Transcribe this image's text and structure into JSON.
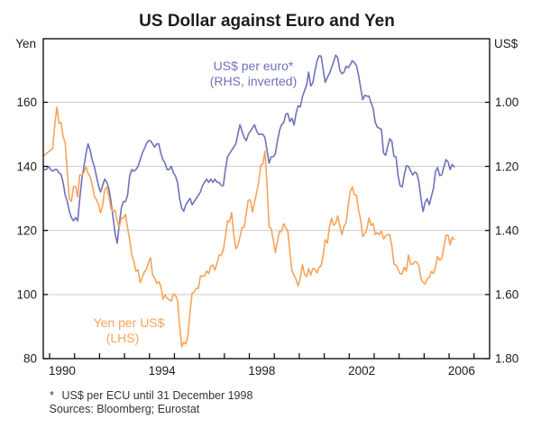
{
  "title": "US Dollar against Euro and Yen",
  "left_unit": "Yen",
  "right_unit": "US$",
  "annotations": {
    "euro_label_line1": "US$ per euro*",
    "euro_label_line2": "(RHS, inverted)",
    "yen_label_line1": "Yen per US$",
    "yen_label_line2": "(LHS)"
  },
  "footnote_marker": "*",
  "footnote_text": "US$ per ECU until 31 December 1998",
  "sources": "Sources: Bloomberg; Eurostat",
  "colors": {
    "yen": "#F8A35A",
    "euro": "#6F72B9",
    "grid": "#C9C9C9",
    "frame": "#000000",
    "text": "#1D1D1D",
    "footnote": "#333333"
  },
  "chart_data": {
    "type": "line",
    "title": "US Dollar against Euro and Yen",
    "x_start": 1989.7917,
    "x_step_months": 1,
    "x_axis": {
      "tick_years_start": 1990,
      "tick_years_end": 2007,
      "labeled_years": [
        1990,
        1994,
        1998,
        2002,
        2006
      ],
      "domain": [
        1989.75,
        2007.65
      ]
    },
    "left_axis": {
      "label": "Yen",
      "ticks": [
        160,
        140,
        120,
        100,
        80
      ],
      "range": [
        80,
        160
      ]
    },
    "right_axis": {
      "label": "US$",
      "tick_labels": [
        "1.00",
        "1.20",
        "1.40",
        "1.60",
        "1.80"
      ],
      "ticks": [
        1.0,
        1.2,
        1.4,
        1.6,
        1.8
      ],
      "inverted": true,
      "range": [
        1.0,
        1.8
      ]
    },
    "grid": "horizontal-only",
    "legend_position": "inline-annotations",
    "series": [
      {
        "name": "US$ per euro (RHS, inverted)",
        "axis": "right",
        "color_key": "euro",
        "values": [
          1.21,
          1.21,
          1.2,
          1.21,
          1.215,
          1.21,
          1.21,
          1.22,
          1.225,
          1.25,
          1.29,
          1.31,
          1.34,
          1.36,
          1.37,
          1.36,
          1.37,
          1.3,
          1.24,
          1.2,
          1.16,
          1.13,
          1.15,
          1.18,
          1.2,
          1.23,
          1.26,
          1.28,
          1.26,
          1.24,
          1.25,
          1.27,
          1.31,
          1.36,
          1.41,
          1.44,
          1.38,
          1.33,
          1.31,
          1.31,
          1.29,
          1.23,
          1.21,
          1.215,
          1.21,
          1.2,
          1.18,
          1.16,
          1.145,
          1.13,
          1.12,
          1.12,
          1.13,
          1.14,
          1.13,
          1.13,
          1.16,
          1.18,
          1.19,
          1.21,
          1.21,
          1.2,
          1.22,
          1.23,
          1.25,
          1.3,
          1.33,
          1.34,
          1.32,
          1.31,
          1.3,
          1.32,
          1.31,
          1.3,
          1.29,
          1.28,
          1.26,
          1.25,
          1.24,
          1.25,
          1.24,
          1.25,
          1.24,
          1.25,
          1.25,
          1.26,
          1.26,
          1.21,
          1.17,
          1.16,
          1.15,
          1.14,
          1.13,
          1.1,
          1.07,
          1.09,
          1.11,
          1.12,
          1.1,
          1.09,
          1.08,
          1.07,
          1.09,
          1.1,
          1.1,
          1.1,
          1.11,
          1.15,
          1.19,
          1.17,
          1.17,
          1.161,
          1.121,
          1.088,
          1.07,
          1.063,
          1.038,
          1.035,
          1.06,
          1.05,
          1.071,
          1.034,
          1.011,
          1.014,
          0.983,
          0.964,
          0.947,
          0.906,
          0.949,
          0.94,
          0.904,
          0.872,
          0.855,
          0.856,
          0.897,
          0.938,
          0.922,
          0.91,
          0.892,
          0.874,
          0.853,
          0.861,
          0.9,
          0.911,
          0.906,
          0.888,
          0.892,
          0.883,
          0.87,
          0.876,
          0.886,
          0.917,
          0.955,
          0.992,
          0.978,
          0.981,
          0.981,
          1.001,
          1.018,
          1.062,
          1.077,
          1.081,
          1.085,
          1.158,
          1.166,
          1.137,
          1.114,
          1.122,
          1.169,
          1.17,
          1.229,
          1.261,
          1.264,
          1.226,
          1.198,
          1.2,
          1.214,
          1.227,
          1.218,
          1.222,
          1.249,
          1.3,
          1.341,
          1.312,
          1.301,
          1.32,
          1.294,
          1.269,
          1.216,
          1.204,
          1.229,
          1.226,
          1.202,
          1.179,
          1.186,
          1.21,
          1.194,
          1.202
        ]
      },
      {
        "name": "Yen per US$ (LHS)",
        "axis": "left",
        "color_key": "yen",
        "values": [
          143.5,
          144.0,
          144.5,
          145.0,
          145.7,
          153.0,
          158.5,
          153.5,
          153.7,
          149.2,
          147.5,
          138.4,
          129.7,
          129.1,
          133.7,
          133.7,
          130.5,
          137.4,
          137.1,
          138.2,
          139.8,
          137.8,
          136.8,
          134.3,
          130.7,
          129.6,
          128.1,
          125.5,
          127.7,
          132.7,
          133.5,
          130.6,
          126.8,
          125.9,
          126.3,
          122.7,
          121.1,
          123.8,
          123.9,
          125.0,
          120.8,
          117.0,
          112.4,
          110.3,
          107.3,
          107.7,
          103.7,
          105.3,
          107.0,
          107.8,
          109.9,
          111.5,
          106.3,
          105.1,
          103.5,
          104.0,
          102.5,
          98.5,
          99.9,
          98.8,
          98.4,
          98.0,
          100.2,
          99.8,
          98.2,
          90.5,
          83.7,
          85.1,
          84.6,
          87.2,
          94.6,
          100.5,
          100.8,
          101.9,
          101.9,
          105.8,
          105.7,
          105.8,
          107.4,
          106.5,
          108.9,
          109.2,
          107.7,
          109.9,
          112.3,
          112.3,
          114.0,
          118.0,
          123.0,
          122.7,
          125.6,
          119.0,
          114.3,
          115.3,
          117.9,
          120.9,
          121.0,
          125.4,
          129.5,
          129.5,
          125.8,
          128.8,
          131.8,
          135.0,
          140.4,
          140.7,
          144.7,
          134.6,
          121.1,
          120.6,
          117.1,
          113.1,
          116.7,
          119.7,
          119.7,
          122.1,
          120.8,
          119.8,
          113.3,
          107.4,
          106.0,
          104.7,
          102.6,
          105.2,
          109.3,
          106.4,
          105.6,
          108.1,
          106.1,
          108.1,
          108.0,
          106.7,
          108.4,
          109.0,
          112.2,
          117.1,
          116.1,
          121.2,
          123.8,
          121.6,
          122.2,
          124.6,
          121.4,
          118.7,
          121.3,
          122.3,
          127.6,
          132.1,
          133.6,
          131.1,
          131.0,
          126.4,
          123.3,
          118.1,
          119.0,
          120.5,
          123.9,
          121.6,
          122.2,
          118.7,
          119.3,
          118.7,
          119.9,
          117.4,
          118.3,
          118.7,
          118.6,
          115.1,
          109.5,
          109.2,
          107.9,
          106.4,
          106.5,
          108.5,
          107.3,
          112.3,
          109.4,
          109.5,
          110.2,
          110.1,
          108.9,
          104.9,
          103.8,
          103.3,
          104.9,
          105.3,
          107.2,
          106.6,
          108.6,
          111.9,
          110.7,
          111.2,
          114.9,
          118.5,
          118.5,
          115.5,
          117.9,
          117.3
        ]
      }
    ]
  }
}
